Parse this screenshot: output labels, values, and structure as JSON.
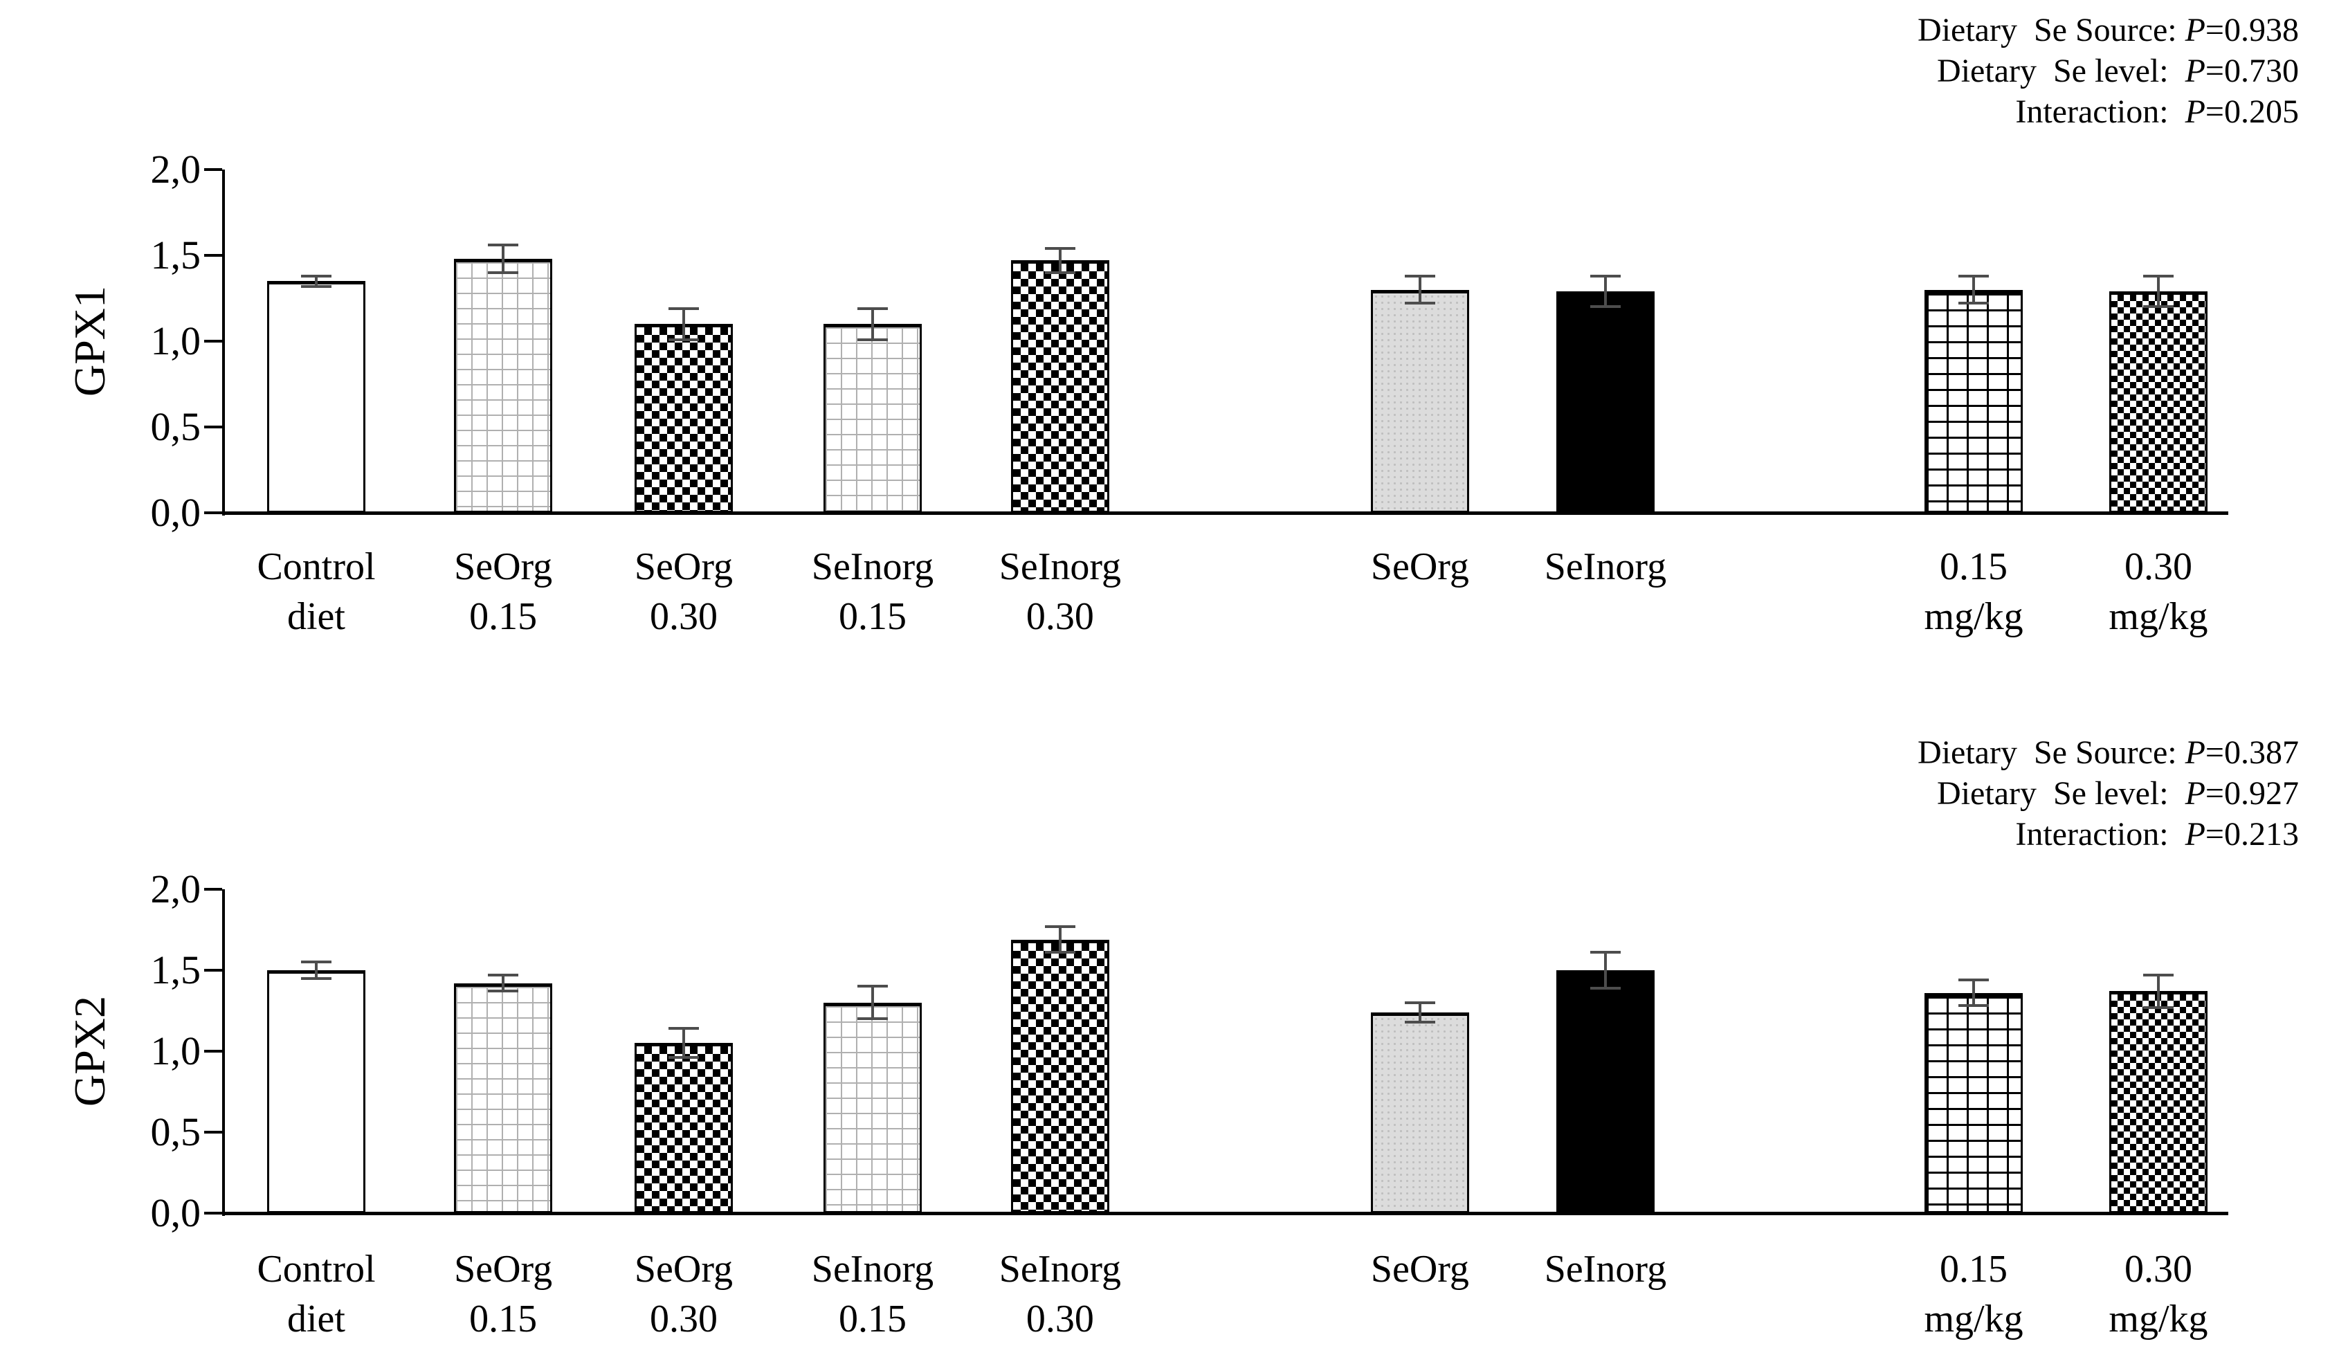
{
  "figure": {
    "background": "#ffffff",
    "text_color": "#000000",
    "error_bar_color": "#4d4d4d",
    "gray_fill": "#dcdcdc"
  },
  "chart_data": [
    {
      "type": "bar",
      "title": "",
      "xlabel": "",
      "ylabel": "GPX1",
      "ylim": [
        0,
        2.0
      ],
      "grid": false,
      "legend": "none",
      "decimal_style": "comma-on-axis",
      "ytick_values": [
        0,
        0.5,
        1.0,
        1.5,
        2.0
      ],
      "ytick_labels": [
        "0,0",
        "0,5",
        "1,0",
        "1,5",
        "2,0"
      ],
      "categories_line1": [
        "Control",
        "SeOrg",
        "SeOrg",
        "SeInorg",
        "SeInorg",
        "SeOrg",
        "SeInorg",
        "0.15",
        "0.30"
      ],
      "categories_line2": [
        "diet",
        "0.15",
        "0.30",
        "0.15",
        "0.30",
        "",
        "",
        "mg/kg",
        "mg/kg"
      ],
      "values": [
        1.35,
        1.48,
        1.1,
        1.1,
        1.47,
        1.3,
        1.29,
        1.3,
        1.29
      ],
      "errors": [
        0.03,
        0.08,
        0.09,
        0.09,
        0.07,
        0.08,
        0.09,
        0.08,
        0.09
      ],
      "patterns": [
        "plain",
        "gray-grid",
        "checker",
        "gray-grid",
        "checker",
        "gray-dots",
        "solid-black",
        "black-grid",
        "fine-checker"
      ],
      "x_centers_pct": [
        4.56,
        13.89,
        22.9,
        32.33,
        41.69,
        59.65,
        68.91,
        87.29,
        96.51
      ],
      "bar_width_pct": 4.9,
      "annotations": [
        {
          "label": "Dietary  Se Source: ",
          "p": "P",
          "eq": "=",
          "value": "0.938"
        },
        {
          "label": "Dietary  Se level:  ",
          "p": "P",
          "eq": "=",
          "value": "0.730"
        },
        {
          "label": "Interaction:  ",
          "p": "P",
          "eq": "=",
          "value": "0.205"
        }
      ]
    },
    {
      "type": "bar",
      "title": "",
      "xlabel": "",
      "ylabel": "GPX2",
      "ylim": [
        0,
        2.0
      ],
      "grid": false,
      "legend": "none",
      "decimal_style": "comma-on-axis",
      "ytick_values": [
        0,
        0.5,
        1.0,
        1.5,
        2.0
      ],
      "ytick_labels": [
        "0,0",
        "0,5",
        "1,0",
        "1,5",
        "2,0"
      ],
      "categories_line1": [
        "Control",
        "SeOrg",
        "SeOrg",
        "SeInorg",
        "SeInorg",
        "SeOrg",
        "SeInorg",
        "0.15",
        "0.30"
      ],
      "categories_line2": [
        "diet",
        "0.15",
        "0.30",
        "0.15",
        "0.30",
        "",
        "",
        "mg/kg",
        "mg/kg"
      ],
      "values": [
        1.5,
        1.42,
        1.05,
        1.3,
        1.69,
        1.24,
        1.5,
        1.36,
        1.37
      ],
      "errors": [
        0.05,
        0.05,
        0.09,
        0.1,
        0.08,
        0.06,
        0.11,
        0.08,
        0.1
      ],
      "patterns": [
        "plain",
        "gray-grid",
        "checker",
        "gray-grid",
        "checker",
        "gray-dots",
        "solid-black",
        "black-grid",
        "fine-checker"
      ],
      "x_centers_pct": [
        4.56,
        13.89,
        22.9,
        32.33,
        41.69,
        59.65,
        68.91,
        87.29,
        96.51
      ],
      "bar_width_pct": 4.9,
      "annotations": [
        {
          "label": "Dietary  Se Source: ",
          "p": "P",
          "eq": "=",
          "value": "0.387"
        },
        {
          "label": "Dietary  Se level:  ",
          "p": "P",
          "eq": "=",
          "value": "0.927"
        },
        {
          "label": "Interaction:  ",
          "p": "P",
          "eq": "=",
          "value": "0.213"
        }
      ]
    }
  ]
}
